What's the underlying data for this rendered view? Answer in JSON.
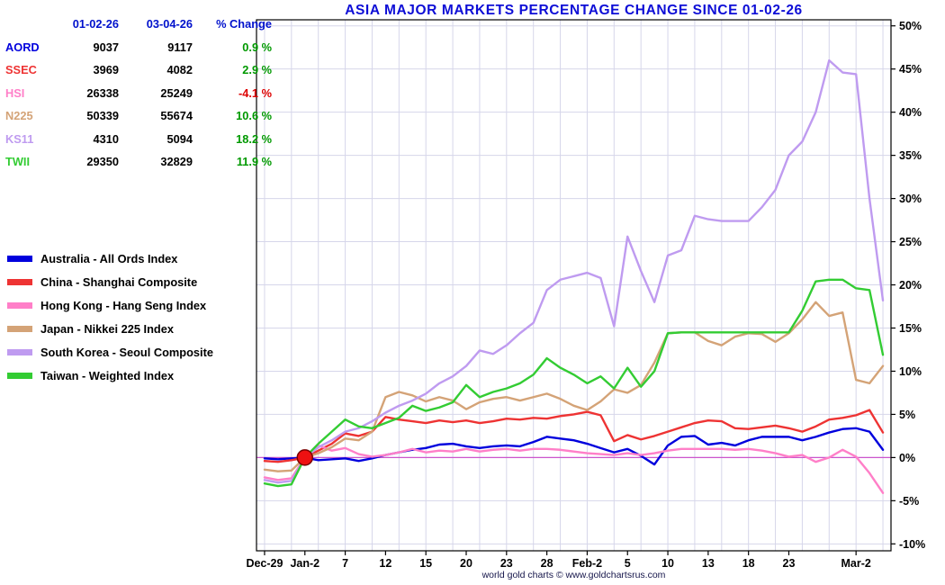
{
  "title": "ASIA MAJOR MARKETS PERCENTAGE CHANGE SINCE 01-02-26",
  "footer": "world gold charts © www.goldchartsrus.com",
  "table": {
    "headers": [
      "01-02-26",
      "03-04-26",
      "% Change"
    ],
    "rows": [
      {
        "ticker": "AORD",
        "v1": "9037",
        "v2": "9117",
        "pct": "0.9 %",
        "color": "#0000dd",
        "pct_color": "#009900"
      },
      {
        "ticker": "SSEC",
        "v1": "3969",
        "v2": "4082",
        "pct": "2.9 %",
        "color": "#ee3333",
        "pct_color": "#009900"
      },
      {
        "ticker": "HSI",
        "v1": "26338",
        "v2": "25249",
        "pct": "-4.1 %",
        "color": "#ff7fc8",
        "pct_color": "#dd0000"
      },
      {
        "ticker": "N225",
        "v1": "50339",
        "v2": "55674",
        "pct": "10.6 %",
        "color": "#d4a377",
        "pct_color": "#009900"
      },
      {
        "ticker": "KS11",
        "v1": "4310",
        "v2": "5094",
        "pct": "18.2 %",
        "color": "#bf9bf0",
        "pct_color": "#009900"
      },
      {
        "ticker": "TWII",
        "v1": "29350",
        "v2": "32829",
        "pct": "11.9 %",
        "color": "#33cc33",
        "pct_color": "#009900"
      }
    ]
  },
  "legend": [
    {
      "label": "Australia - All Ords Index",
      "color": "#0000dd"
    },
    {
      "label": "China - Shanghai Composite",
      "color": "#ee3333"
    },
    {
      "label": "Hong Kong - Hang Seng Index",
      "color": "#ff7fc8"
    },
    {
      "label": "Japan - Nikkei 225 Index",
      "color": "#d4a377"
    },
    {
      "label": "South Korea - Seoul Composite",
      "color": "#bf9bf0"
    },
    {
      "label": "Taiwan - Weighted Index",
      "color": "#33cc33"
    }
  ],
  "chart_data": {
    "type": "line",
    "title": "ASIA MAJOR MARKETS PERCENTAGE CHANGE SINCE 01-02-26",
    "x_description": "trading-day index, 0 = Dec-29 through 46 = Mar-4",
    "xlim": [
      -0.6,
      46.6
    ],
    "ylim": [
      -10.8,
      50.7
    ],
    "y_ticks": [
      -10,
      -5,
      0,
      5,
      10,
      15,
      20,
      25,
      30,
      35,
      40,
      45,
      50
    ],
    "y_tick_suffix": "%",
    "x_ticks": [
      {
        "label": "Dec-29",
        "x": 0
      },
      {
        "label": "Jan-2",
        "x": 3
      },
      {
        "label": "7",
        "x": 6
      },
      {
        "label": "12",
        "x": 9
      },
      {
        "label": "15",
        "x": 12
      },
      {
        "label": "20",
        "x": 15
      },
      {
        "label": "23",
        "x": 18
      },
      {
        "label": "28",
        "x": 21
      },
      {
        "label": "Feb-2",
        "x": 24
      },
      {
        "label": "5",
        "x": 27
      },
      {
        "label": "10",
        "x": 30
      },
      {
        "label": "13",
        "x": 33
      },
      {
        "label": "18",
        "x": 36
      },
      {
        "label": "23",
        "x": 39
      },
      {
        "label": "Mar-2",
        "x": 44
      }
    ],
    "grid": true,
    "grid_color": "#d6d6ea",
    "vgrid_step": 2,
    "zero_line_color": "#cc55cc",
    "legend_position": "outside-left",
    "marker": {
      "x": 3,
      "y": 0,
      "r": 8.5,
      "fill": "#ee1111",
      "stroke": "#7a0000"
    },
    "series": [
      {
        "name": "AORD - Australia All Ords",
        "color": "#0000dd",
        "values": [
          -0.1,
          -0.2,
          -0.1,
          0.0,
          -0.3,
          -0.2,
          -0.1,
          -0.4,
          -0.1,
          0.3,
          0.6,
          0.9,
          1.1,
          1.5,
          1.6,
          1.3,
          1.1,
          1.3,
          1.4,
          1.3,
          1.8,
          2.4,
          2.2,
          2.0,
          1.6,
          1.1,
          0.6,
          1.0,
          0.2,
          -0.8,
          1.4,
          2.4,
          2.5,
          1.5,
          1.7,
          1.4,
          2.0,
          2.4,
          2.4,
          2.4,
          2.0,
          2.4,
          2.9,
          3.3,
          3.4,
          3.0,
          0.9
        ]
      },
      {
        "name": "SSEC - Shanghai Composite",
        "color": "#ee3333",
        "values": [
          -0.4,
          -0.5,
          -0.3,
          0.0,
          0.8,
          1.6,
          2.8,
          2.5,
          3.0,
          4.7,
          4.4,
          4.2,
          4.0,
          4.3,
          4.1,
          4.3,
          4.0,
          4.2,
          4.5,
          4.4,
          4.6,
          4.5,
          4.8,
          5.0,
          5.3,
          4.9,
          1.9,
          2.6,
          2.1,
          2.5,
          3.0,
          3.5,
          4.0,
          4.3,
          4.2,
          3.4,
          3.3,
          3.5,
          3.7,
          3.4,
          3.0,
          3.6,
          4.4,
          4.6,
          4.9,
          5.5,
          2.9
        ]
      },
      {
        "name": "HSI - Hang Seng Index",
        "color": "#ff7fc8",
        "values": [
          -2.3,
          -2.6,
          -2.4,
          0.0,
          1.4,
          0.8,
          1.1,
          0.4,
          0.1,
          0.3,
          0.6,
          1.0,
          0.6,
          0.8,
          0.7,
          1.0,
          0.7,
          0.9,
          1.0,
          0.8,
          1.0,
          1.0,
          0.9,
          0.7,
          0.5,
          0.4,
          0.3,
          0.5,
          0.3,
          0.5,
          0.8,
          1.0,
          1.0,
          1.0,
          1.0,
          0.9,
          1.0,
          0.8,
          0.5,
          0.1,
          0.3,
          -0.5,
          0.0,
          0.9,
          0.1,
          -1.8,
          -4.1
        ]
      },
      {
        "name": "N225 - Nikkei 225",
        "color": "#d4a377",
        "values": [
          -1.4,
          -1.6,
          -1.5,
          0.0,
          0.5,
          1.2,
          2.2,
          2.0,
          3.0,
          7.0,
          7.6,
          7.2,
          6.5,
          7.0,
          6.6,
          5.6,
          6.4,
          6.8,
          7.0,
          6.6,
          7.0,
          7.4,
          6.8,
          6.0,
          5.5,
          6.5,
          7.9,
          7.5,
          8.4,
          11.0,
          14.4,
          14.5,
          14.5,
          13.5,
          13.0,
          14.0,
          14.4,
          14.3,
          13.4,
          14.4,
          16.0,
          18.0,
          16.4,
          16.8,
          9.0,
          8.6,
          10.6
        ]
      },
      {
        "name": "KS11 - Seoul Composite",
        "color": "#bf9bf0",
        "values": [
          -2.6,
          -2.9,
          -2.7,
          0.0,
          1.2,
          2.0,
          3.0,
          3.4,
          4.2,
          5.2,
          6.0,
          6.6,
          7.4,
          8.6,
          9.4,
          10.6,
          12.4,
          12.0,
          13.0,
          14.4,
          15.6,
          19.4,
          20.6,
          21.0,
          21.4,
          20.8,
          15.2,
          25.6,
          21.6,
          18.0,
          23.4,
          24.0,
          28.0,
          27.6,
          27.4,
          27.4,
          27.4,
          29.0,
          31.0,
          35.0,
          36.6,
          40.0,
          46.0,
          44.6,
          44.4,
          30.0,
          18.2
        ]
      },
      {
        "name": "TWII - Taiwan Weighted",
        "color": "#33cc33",
        "values": [
          -3.0,
          -3.3,
          -3.1,
          0.0,
          1.6,
          3.0,
          4.4,
          3.6,
          3.4,
          4.0,
          4.6,
          6.0,
          5.4,
          5.8,
          6.4,
          8.4,
          7.0,
          7.6,
          8.0,
          8.6,
          9.6,
          11.5,
          10.4,
          9.6,
          8.6,
          9.4,
          8.0,
          10.4,
          8.2,
          10.0,
          14.4,
          14.5,
          14.5,
          14.5,
          14.5,
          14.5,
          14.5,
          14.5,
          14.5,
          14.5,
          17.0,
          20.4,
          20.6,
          20.6,
          19.6,
          19.4,
          11.9
        ]
      }
    ]
  }
}
